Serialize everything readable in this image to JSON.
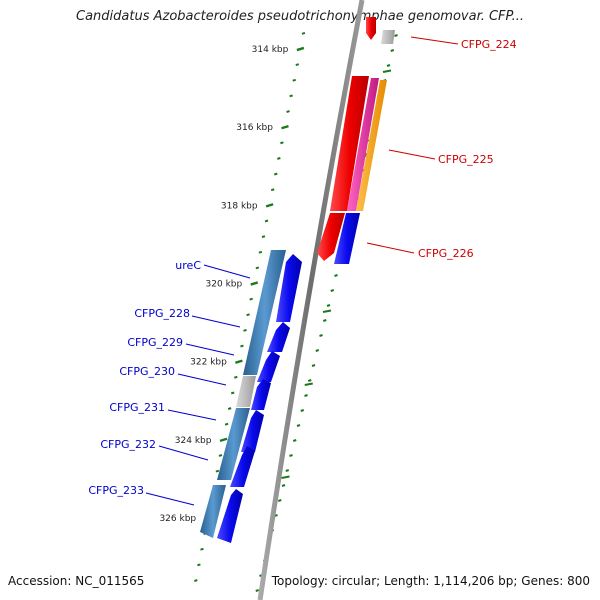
{
  "title": "Candidatus Azobacteroides pseudotrichonymphae genomovar. CFP...",
  "footer": {
    "accession_label": "Accession:",
    "accession": "NC_011565",
    "topology_label": "Topology:",
    "topology": "circular",
    "length_label": "Length:",
    "length": "1,114,206 bp",
    "genes_label": "Genes:",
    "genes": "800"
  },
  "ticks": [
    {
      "label": "314 kbp",
      "kbp": 314
    },
    {
      "label": "316 kbp",
      "kbp": 316
    },
    {
      "label": "318 kbp",
      "kbp": 318
    },
    {
      "label": "320 kbp",
      "kbp": 320
    },
    {
      "label": "322 kbp",
      "kbp": 322
    },
    {
      "label": "324 kbp",
      "kbp": 324
    },
    {
      "label": "326 kbp",
      "kbp": 326
    }
  ],
  "genes_right": [
    {
      "label": "CFPG_224",
      "color": "#cc0000"
    },
    {
      "label": "CFPG_225",
      "color": "#cc0000"
    },
    {
      "label": "CFPG_226",
      "color": "#cc0000"
    }
  ],
  "genes_left": [
    {
      "label": "ureC",
      "color": "#0000cc"
    },
    {
      "label": "CFPG_228",
      "color": "#0000cc"
    },
    {
      "label": "CFPG_229",
      "color": "#0000cc"
    },
    {
      "label": "CFPG_230",
      "color": "#0000cc"
    },
    {
      "label": "CFPG_231",
      "color": "#0000cc"
    },
    {
      "label": "CFPG_232",
      "color": "#0000cc"
    },
    {
      "label": "CFPG_233",
      "color": "#0000cc"
    }
  ],
  "colors": {
    "backbone": "#7a7a7a",
    "tick_green": "#1a7a1a",
    "forward_red": "#ee1111",
    "forward_magenta": "#e0208a",
    "forward_orange": "#ff9900",
    "reverse_blue": "#1010ee",
    "steel_blue": "#3f7fb5",
    "gray_feature": "#b8b8b8"
  }
}
